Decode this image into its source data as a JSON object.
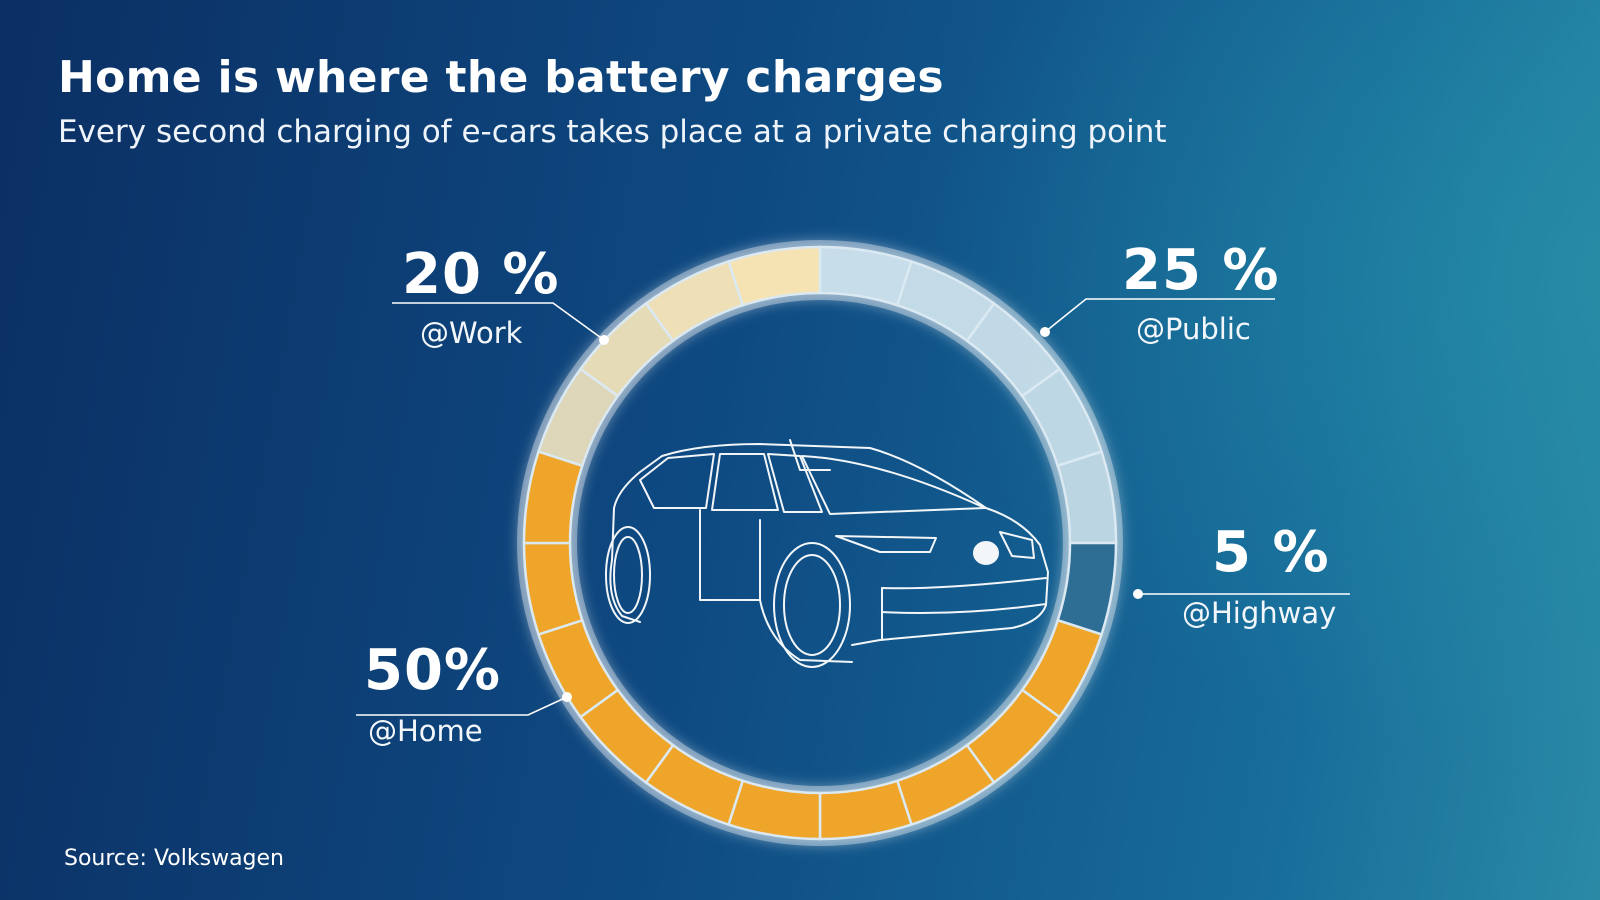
{
  "header": {
    "title": "Home is where the battery charges",
    "subtitle": "Every second charging of e-cars takes place at a private charging point"
  },
  "footer": {
    "source": "Source: Volkswagen"
  },
  "colors": {
    "home": "#efa52a",
    "work": "#f6e3b4",
    "public": "#c9dfea",
    "highway": "#2f6e94",
    "line": "#ffffff"
  },
  "chart_data": {
    "type": "pie",
    "style": "segmented-ring",
    "segments_total": 20,
    "series": [
      {
        "label": "@Home",
        "value_label": "50%",
        "value": 50
      },
      {
        "label": "@Work",
        "value_label": "20 %",
        "value": 20
      },
      {
        "label": "@Public",
        "value_label": "25 %",
        "value": 25
      },
      {
        "label": "@Highway",
        "value_label": "5 %",
        "value": 5
      }
    ]
  }
}
